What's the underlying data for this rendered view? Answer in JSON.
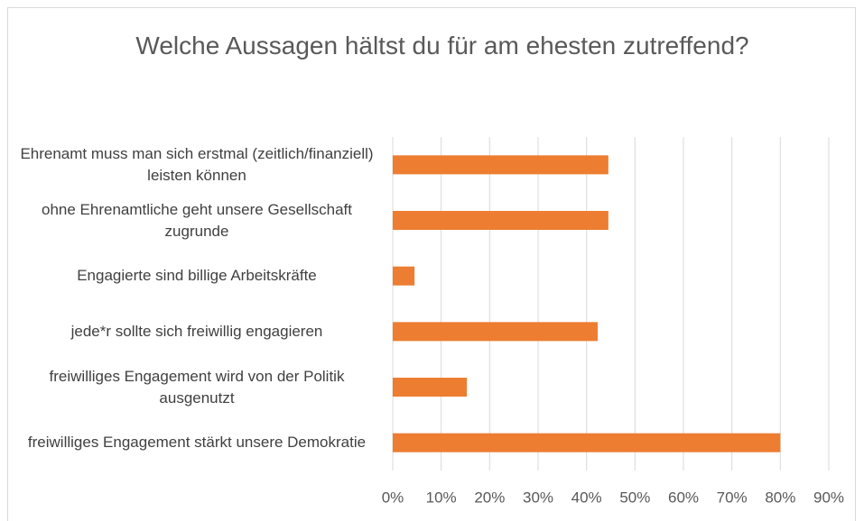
{
  "chart_data": {
    "type": "bar",
    "orientation": "horizontal",
    "title": "Welche Aussagen hältst du für am ehesten zutreffend?",
    "categories": [
      "Ehrenamt muss man sich erstmal (zeitlich/finanziell) leisten können",
      "ohne Ehrenamtliche geht unsere Gesellschaft zugrunde",
      "Engagierte sind billige Arbeitskräfte",
      "jede*r sollte sich freiwillig engagieren",
      "freiwilliges Engagement wird von der Politik ausgenutzt",
      "freiwilliges Engagement stärkt unsere Demokratie"
    ],
    "values": [
      44.5,
      44.5,
      4.5,
      42.3,
      15.3,
      80
    ],
    "color": "#ed7d31",
    "xlim": [
      0,
      90
    ],
    "xticks": [
      {
        "value": 0,
        "label": "0%"
      },
      {
        "value": 10,
        "label": "10%"
      },
      {
        "value": 20,
        "label": "20%"
      },
      {
        "value": 30,
        "label": "30%"
      },
      {
        "value": 40,
        "label": "40%"
      },
      {
        "value": 50,
        "label": "50%"
      },
      {
        "value": 60,
        "label": "60%"
      },
      {
        "value": 70,
        "label": "70%"
      },
      {
        "value": 80,
        "label": "80%"
      },
      {
        "value": 90,
        "label": "90%"
      }
    ],
    "grid": true
  }
}
